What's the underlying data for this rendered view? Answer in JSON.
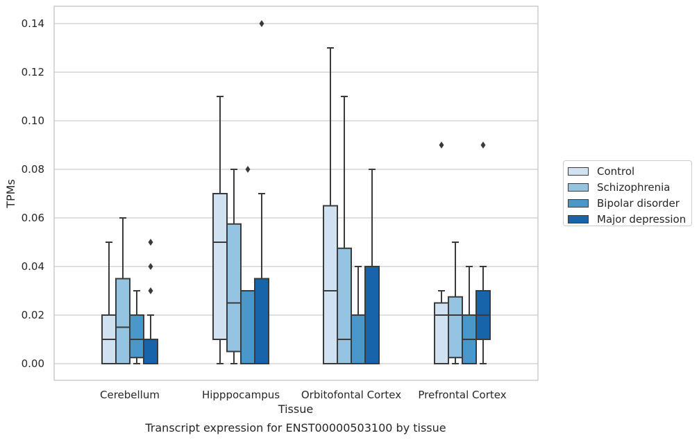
{
  "chart_data": {
    "type": "box",
    "title": "Transcript expression for ENST00000503100 by tissue",
    "xlabel": "Tissue",
    "ylabel": "TPMs",
    "ylim": [
      -0.007,
      0.147
    ],
    "yticks": [
      "0.00",
      "0.02",
      "0.04",
      "0.06",
      "0.08",
      "0.10",
      "0.12",
      "0.14"
    ],
    "categories": [
      "Cerebellum",
      "Hipppocampus",
      "Orbitofontal Cortex",
      "Prefrontal Cortex"
    ],
    "grid": true,
    "legend_position": "right",
    "series": [
      {
        "name": "Control",
        "color": "#d0e1f2",
        "boxes": [
          {
            "whislo": 0.0,
            "q1": 0.0,
            "med": 0.01,
            "q3": 0.02,
            "whishi": 0.05,
            "fliers": []
          },
          {
            "whislo": 0.0,
            "q1": 0.01,
            "med": 0.05,
            "q3": 0.07,
            "whishi": 0.11,
            "fliers": []
          },
          {
            "whislo": 0.0,
            "q1": 0.0,
            "med": 0.03,
            "q3": 0.065,
            "whishi": 0.13,
            "fliers": []
          },
          {
            "whislo": 0.0,
            "q1": 0.0,
            "med": 0.02,
            "q3": 0.025,
            "whishi": 0.03,
            "fliers": [
              0.09
            ]
          }
        ]
      },
      {
        "name": "Schizophrenia",
        "color": "#94c4df",
        "boxes": [
          {
            "whislo": 0.0,
            "q1": 0.0,
            "med": 0.015,
            "q3": 0.035,
            "whishi": 0.06,
            "fliers": []
          },
          {
            "whislo": 0.0,
            "q1": 0.005,
            "med": 0.025,
            "q3": 0.0575,
            "whishi": 0.08,
            "fliers": []
          },
          {
            "whislo": 0.0,
            "q1": 0.0,
            "med": 0.01,
            "q3": 0.0475,
            "whishi": 0.11,
            "fliers": []
          },
          {
            "whislo": 0.0,
            "q1": 0.0025,
            "med": 0.02,
            "q3": 0.0275,
            "whishi": 0.05,
            "fliers": []
          }
        ]
      },
      {
        "name": "Bipolar disorder",
        "color": "#4a98c9",
        "boxes": [
          {
            "whislo": 0.0,
            "q1": 0.0025,
            "med": 0.01,
            "q3": 0.02,
            "whishi": 0.03,
            "fliers": []
          },
          {
            "whislo": 0.0,
            "q1": 0.0,
            "med": 0.0,
            "q3": 0.03,
            "whishi": 0.03,
            "fliers": [
              0.08
            ]
          },
          {
            "whislo": 0.0,
            "q1": 0.0,
            "med": 0.0,
            "q3": 0.02,
            "whishi": 0.04,
            "fliers": []
          },
          {
            "whislo": 0.0,
            "q1": 0.0,
            "med": 0.01,
            "q3": 0.02,
            "whishi": 0.04,
            "fliers": []
          }
        ]
      },
      {
        "name": "Major depression",
        "color": "#1764ab",
        "boxes": [
          {
            "whislo": 0.0,
            "q1": 0.0,
            "med": 0.0,
            "q3": 0.01,
            "whishi": 0.02,
            "fliers": [
              0.03,
              0.04,
              0.05
            ]
          },
          {
            "whislo": 0.0,
            "q1": 0.0,
            "med": 0.0,
            "q3": 0.035,
            "whishi": 0.07,
            "fliers": [
              0.14
            ]
          },
          {
            "whislo": 0.0,
            "q1": 0.0,
            "med": 0.0,
            "q3": 0.04,
            "whishi": 0.08,
            "fliers": []
          },
          {
            "whislo": 0.0,
            "q1": 0.01,
            "med": 0.02,
            "q3": 0.03,
            "whishi": 0.04,
            "fliers": [
              0.09
            ]
          }
        ]
      }
    ]
  }
}
